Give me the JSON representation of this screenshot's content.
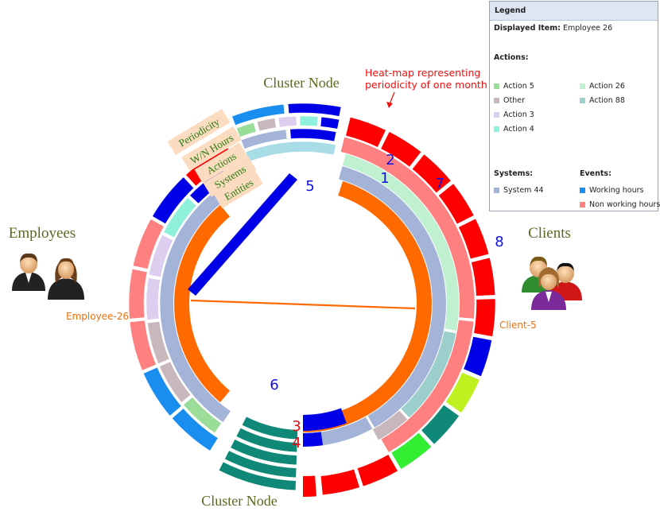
{
  "labels": {
    "cluster_node_top": "Cluster Node",
    "cluster_node_bottom": "Cluster Node",
    "employees": "Employees",
    "clients": "Clients",
    "employee": "Employee-26",
    "client": "Client-5",
    "heatmap_annotation_1": "Heat-map representing",
    "heatmap_annotation_2": "periodicity of one month"
  },
  "ring_tags": [
    "Periodicity",
    "W/N Hours",
    "Actions",
    "Systems",
    "Entities"
  ],
  "numbers": [
    "1",
    "2",
    "3",
    "4",
    "5",
    "6",
    "7",
    "8"
  ],
  "legend": {
    "title": "Legend",
    "displayed_label": "Displayed Item:",
    "displayed_value": "Employee 26",
    "actions_heading": "Actions:",
    "actions": [
      {
        "label": "Action 5",
        "color": "#99dd99"
      },
      {
        "label": "Action 26",
        "color": "#bff0d0"
      },
      {
        "label": "Other",
        "color": "#c8b7bd"
      },
      {
        "label": "Action 88",
        "color": "#9ccfcb"
      },
      {
        "label": "Action 3",
        "color": "#ddcdee"
      },
      {
        "label": "Action 4",
        "color": "#8ff0dc"
      }
    ],
    "systems_heading": "Systems:",
    "systems": [
      {
        "label": "System 44",
        "color": "#a4b4d8"
      }
    ],
    "events_heading": "Events:",
    "events": [
      {
        "label": "Working hours",
        "color": "#1a8ef0"
      },
      {
        "label": "Non working hours",
        "color": "#ff8080"
      }
    ]
  },
  "colors": {
    "entity": "#ff6a00",
    "system": "#a4b4d8",
    "periodicity_red": "#ff0000",
    "periodicity_blue": "#0000e6",
    "non_working": "#ff8080",
    "working": "#1a8ef0",
    "cluster_teal": "#108878",
    "label_olive": "#5a6a20",
    "number_blue": "#1010e0",
    "number_red": "#e01010",
    "tag_fill": "#fbdcc0",
    "tag_text": "#2a7a10"
  }
}
